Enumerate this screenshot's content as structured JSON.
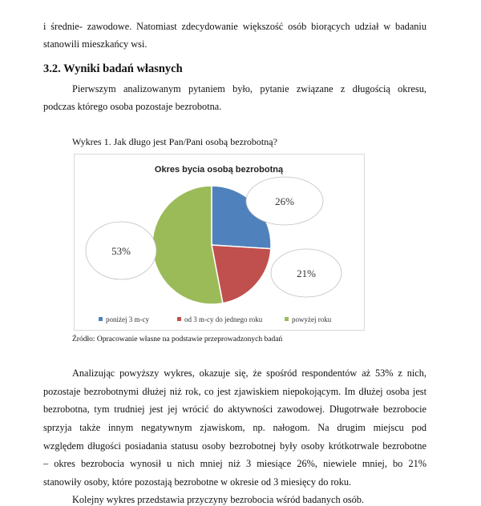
{
  "intro_lines": [
    "i średnie- zawodowe. Natomiast zdecydowanie większość osób biorących udział w badaniu",
    "stanowili mieszkańcy wsi."
  ],
  "section_heading": "3.2. Wyniki badań własnych",
  "para1_lines": [
    "Pierwszym analizowanym pytaniem było, pytanie związane z długością okresu,",
    "podczas którego osoba pozostaje bezrobotna."
  ],
  "figure_caption": "Wykres 1. Jak długo jest Pan/Pani osobą bezrobotną?",
  "chart_data": {
    "type": "pie",
    "title": "Okres bycia osobą bezrobotną",
    "categories": [
      "poniżej 3 m-cy",
      "od 3 m-cy do jednego roku",
      "powyżej roku"
    ],
    "values": [
      26,
      21,
      53
    ],
    "labels": [
      "26%",
      "21%",
      "53%"
    ],
    "colors": [
      "#4f81bd",
      "#c0504d",
      "#9bbb59"
    ],
    "legend": "bottom"
  },
  "figure_source": "Źródło: Opracowanie własne na podstawie przeprowadzonych badań",
  "para2_lines": [
    "Analizując powyższy wykres, okazuje się, że spośród respondentów aż 53% z nich,",
    "pozostaje bezrobotnymi dłużej niż rok, co jest zjawiskiem niepokojącym. Im dłużej osoba jest",
    "bezrobotna, tym trudniej jest jej wrócić do aktywności zawodowej. Długotrwałe bezrobocie",
    "sprzyja także innym negatywnym zjawiskom, np. nałogom. Na drugim miejscu pod",
    "względem długości posiadania statusu osoby bezrobotnej były osoby krótkotrwale bezrobotne",
    "– okres bezrobocia wynosił u nich mniej niż 3 miesiące 26%, niewiele mniej, bo 21%",
    "stanowiły osoby, które pozostają bezrobotne w okresie od 3 miesięcy do roku.",
    "Kolejny wykres przedstawia przyczyny bezrobocia wśród badanych osób."
  ]
}
